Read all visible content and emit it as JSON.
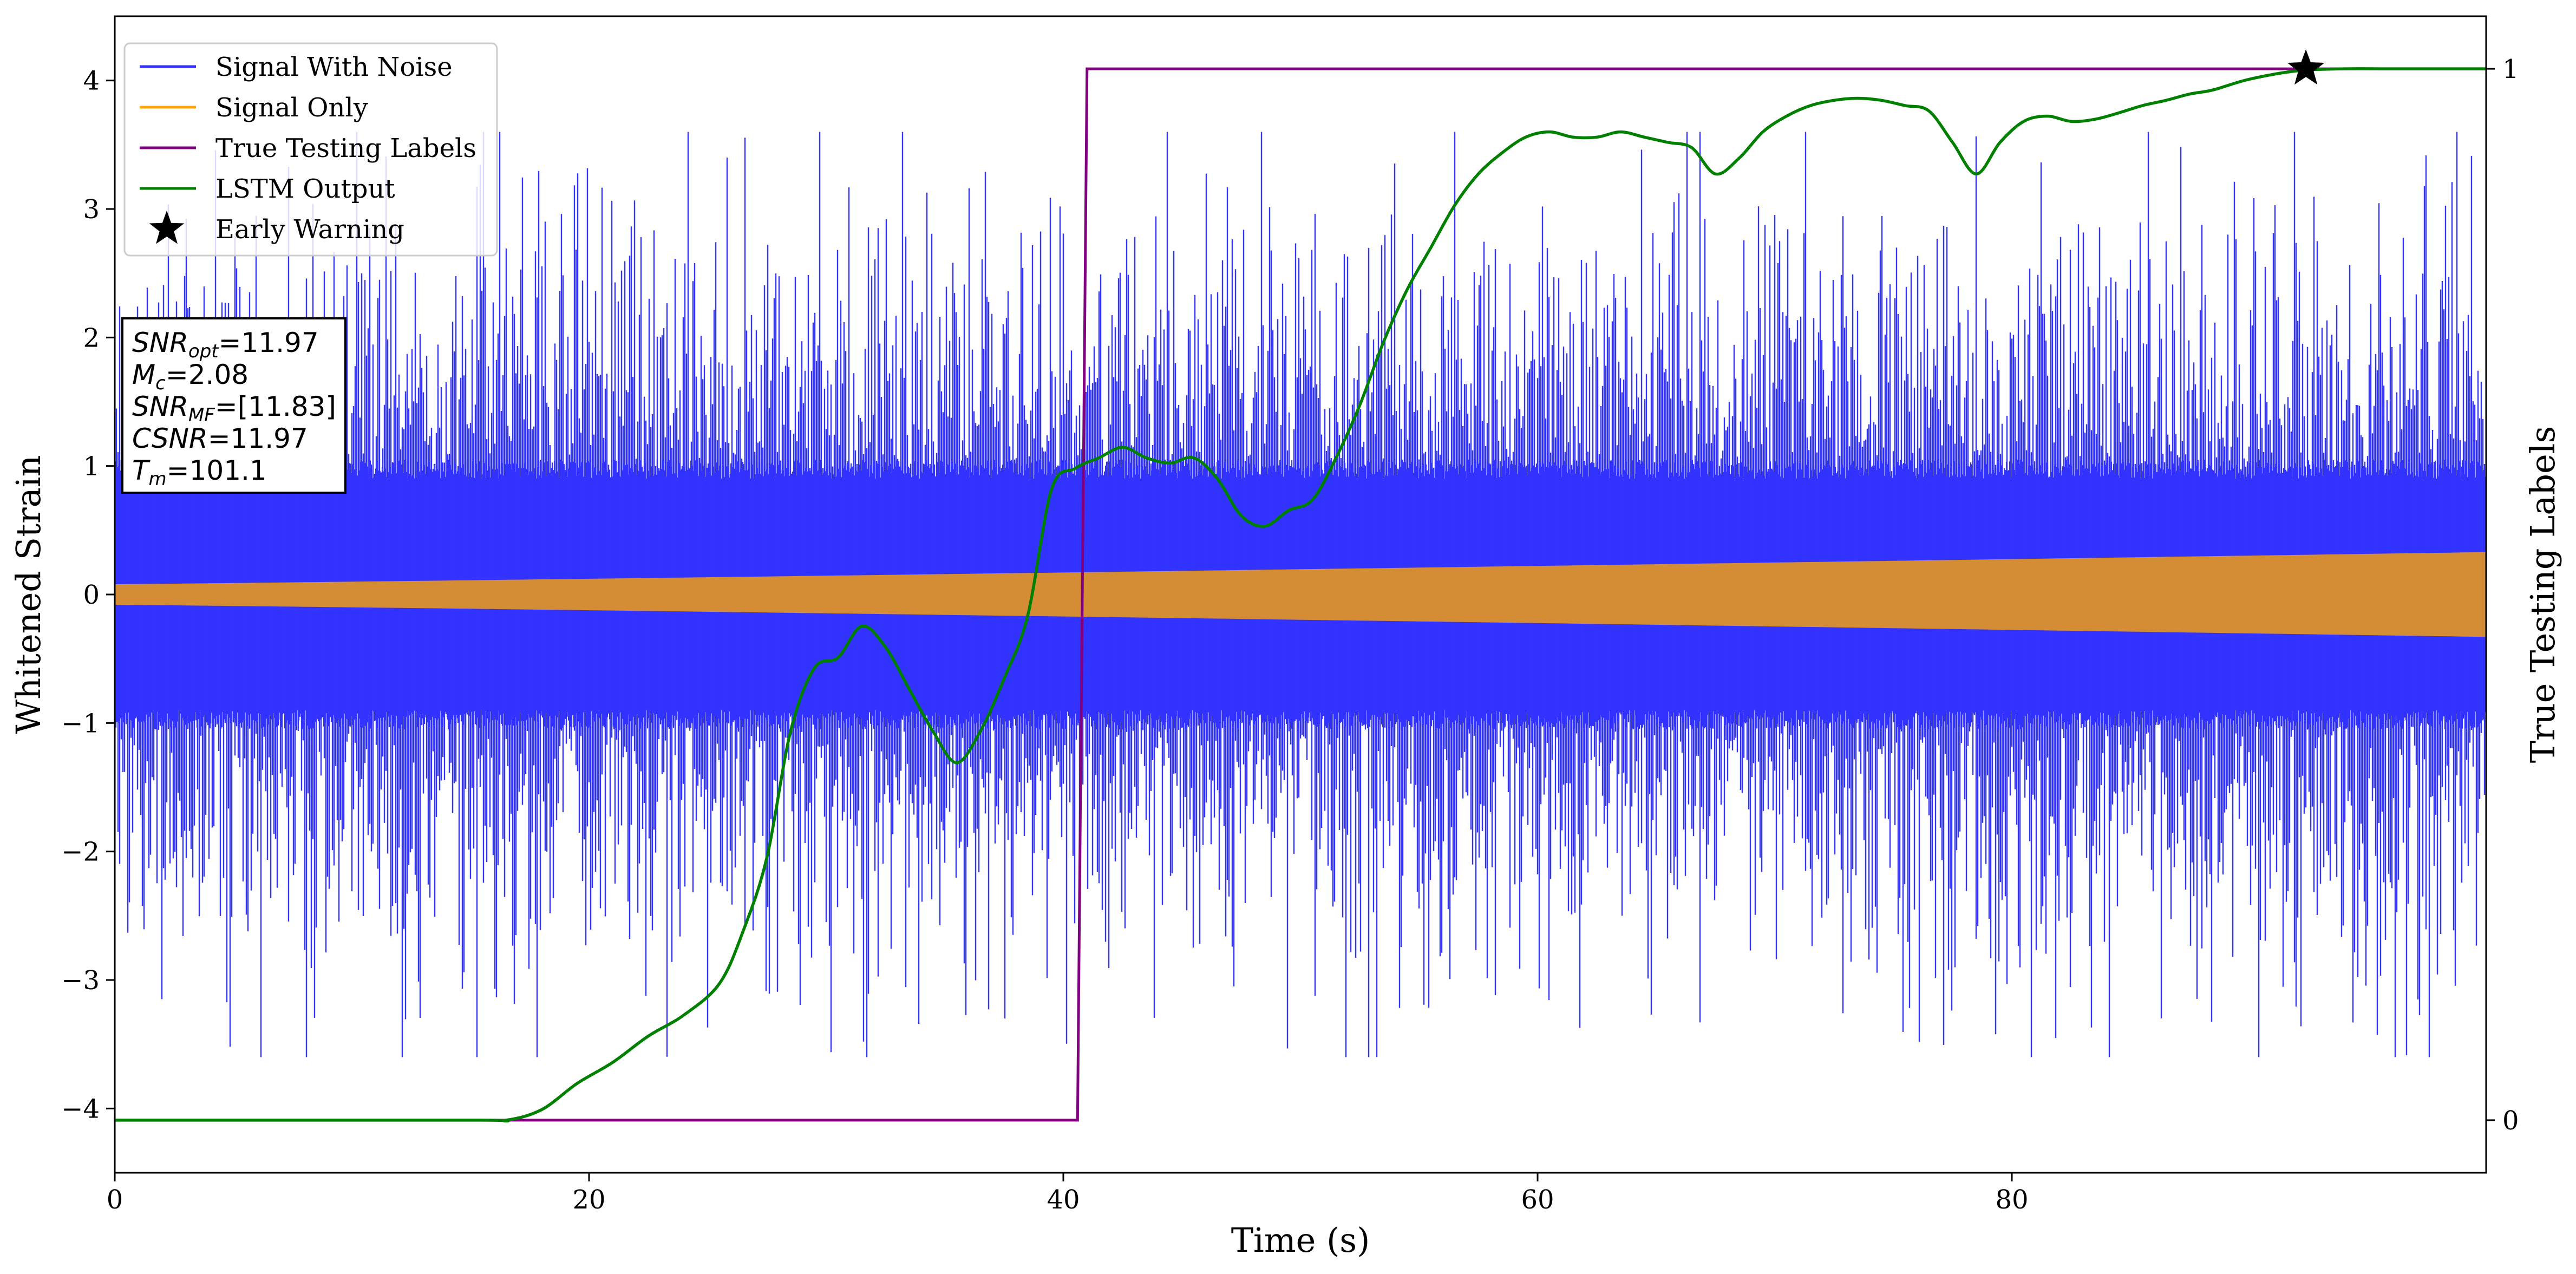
{
  "chart_data": {
    "type": "line",
    "title": "",
    "xlabel": "Time (s)",
    "ylabel": "Whitened Strain",
    "y2label": "True Testing Labels",
    "xlim": [
      0,
      100
    ],
    "ylim": [
      -4.5,
      4.5
    ],
    "y2lim": [
      -0.05,
      1.05
    ],
    "x_ticks": [
      0,
      20,
      40,
      60,
      80
    ],
    "y_ticks": [
      -4,
      -3,
      -2,
      -1,
      0,
      1,
      2,
      3,
      4
    ],
    "y2_ticks": [
      0,
      1
    ],
    "grid": false,
    "legend_position": "top-left",
    "series": [
      {
        "name": "Signal With Noise",
        "color": "#3333ff",
        "axis": "left",
        "style": "noise-band",
        "core_amplitude": 1.0,
        "peak_amplitude": 3.6
      },
      {
        "name": "Signal Only",
        "color": "#ffa500",
        "axis": "left",
        "style": "chirp-envelope",
        "amplitude_start": 0.08,
        "amplitude_end": 0.33
      },
      {
        "name": "True Testing Labels",
        "color": "#800080",
        "axis": "right",
        "x": [
          0,
          40.6,
          41,
          100
        ],
        "y": [
          0,
          0,
          1,
          1
        ]
      },
      {
        "name": "LSTM Output",
        "color": "#008000",
        "axis": "right",
        "x": [
          0,
          15,
          16.5,
          18,
          19.5,
          21,
          22.5,
          24,
          25.5,
          26.5,
          27.5,
          28.5,
          29.5,
          30.5,
          31.5,
          32.5,
          33.5,
          34.5,
          35.5,
          36.5,
          37.5,
          38.5,
          39.5,
          40.5,
          41.5,
          42.5,
          43.5,
          44.5,
          45.5,
          46.5,
          47.5,
          48.5,
          49.5,
          50.5,
          51.5,
          52.5,
          53.5,
          54.5,
          55.5,
          56.5,
          57.5,
          58.5,
          59.5,
          60.5,
          61.5,
          62.5,
          63.5,
          64.5,
          65.5,
          66.5,
          67.5,
          68.5,
          69.5,
          70.5,
          71.5,
          72.5,
          73.5,
          74.5,
          75.5,
          76.5,
          77.5,
          78.5,
          79.5,
          80.5,
          81.5,
          82.5,
          83.5,
          84.5,
          85.5,
          86.5,
          87.5,
          88.5,
          90,
          92,
          94,
          96,
          98,
          100
        ],
        "y": [
          0.0,
          0.0,
          0.0,
          0.01,
          0.035,
          0.055,
          0.08,
          0.1,
          0.13,
          0.18,
          0.25,
          0.37,
          0.43,
          0.44,
          0.47,
          0.45,
          0.41,
          0.37,
          0.34,
          0.37,
          0.42,
          0.48,
          0.6,
          0.62,
          0.63,
          0.64,
          0.63,
          0.625,
          0.63,
          0.61,
          0.575,
          0.565,
          0.58,
          0.59,
          0.63,
          0.68,
          0.74,
          0.79,
          0.83,
          0.87,
          0.9,
          0.92,
          0.935,
          0.94,
          0.935,
          0.935,
          0.94,
          0.935,
          0.93,
          0.925,
          0.9,
          0.915,
          0.94,
          0.955,
          0.965,
          0.97,
          0.972,
          0.97,
          0.965,
          0.96,
          0.93,
          0.9,
          0.93,
          0.95,
          0.955,
          0.95,
          0.952,
          0.958,
          0.965,
          0.97,
          0.976,
          0.98,
          0.99,
          0.998,
          1.0,
          1.0,
          1.0,
          1.0
        ]
      },
      {
        "name": "Early Warning",
        "color": "#000000",
        "axis": "right",
        "marker": "star",
        "x": [
          92.4
        ],
        "y": [
          1.0
        ]
      }
    ],
    "annotation": {
      "lines": [
        {
          "label": "SNR",
          "sub": "opt",
          "value": "=11.97"
        },
        {
          "label": "M",
          "sub": "c",
          "value": "=2.08"
        },
        {
          "label": "SNR",
          "sub": "MF",
          "value": "=[11.83]"
        },
        {
          "label": "CSNR",
          "sub": "",
          "value": "=11.97"
        },
        {
          "label": "T",
          "sub": "m",
          "value": "=101.1"
        }
      ]
    }
  }
}
